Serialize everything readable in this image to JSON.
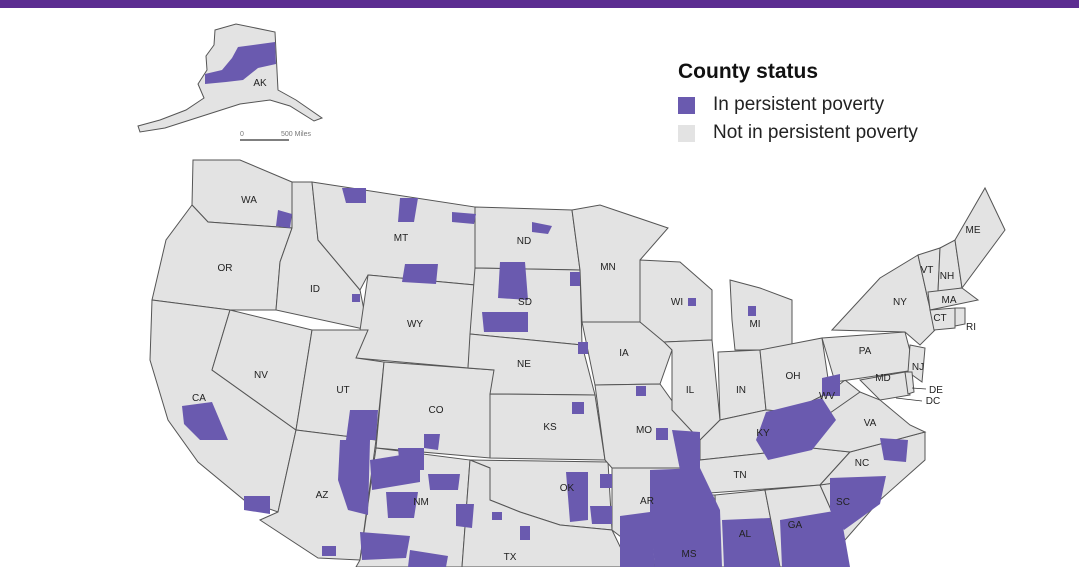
{
  "colors": {
    "topbar": "#5c2d91",
    "poverty": "#6a5aaf",
    "not_poverty": "#e3e3e3",
    "state_border": "#555555"
  },
  "legend": {
    "title": "County status",
    "items": [
      {
        "label": "In persistent poverty",
        "color": "#6a5aaf"
      },
      {
        "label": "Not in persistent poverty",
        "color": "#e3e3e3"
      }
    ]
  },
  "scale_bar": {
    "start": "0",
    "end": "500 Miles"
  },
  "states": [
    "AK",
    "WA",
    "OR",
    "CA",
    "ID",
    "NV",
    "MT",
    "WY",
    "UT",
    "AZ",
    "CO",
    "NM",
    "ND",
    "SD",
    "NE",
    "KS",
    "OK",
    "TX",
    "MN",
    "IA",
    "MO",
    "AR",
    "WI",
    "IL",
    "MI",
    "IN",
    "OH",
    "KY",
    "TN",
    "MS",
    "AL",
    "GA",
    "SC",
    "NC",
    "VA",
    "WV",
    "PA",
    "NY",
    "VT",
    "NH",
    "ME",
    "MA",
    "CT",
    "RI",
    "NJ",
    "MD",
    "DE",
    "DC"
  ]
}
